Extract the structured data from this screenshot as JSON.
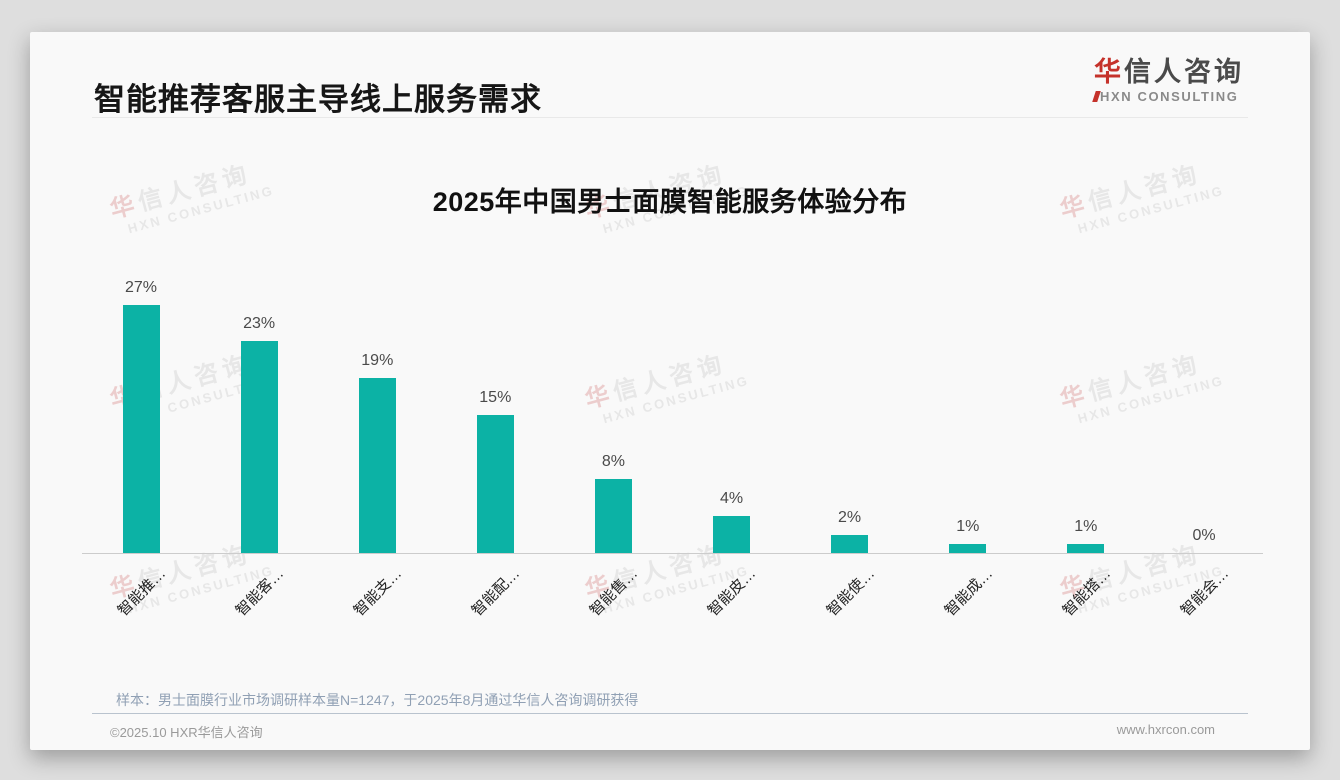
{
  "header": {
    "title": "智能推荐客服主导线上服务需求",
    "logo": {
      "cn_first": "华",
      "cn_rest": "信人咨询",
      "en": "HXN CONSULTING"
    }
  },
  "watermark": {
    "cn_first": "华",
    "cn_rest": "信人咨询",
    "en": "HXN CONSULTING"
  },
  "chart_data": {
    "type": "bar",
    "title": "2025年中国男士面膜智能服务体验分布",
    "categories": [
      "智能推…",
      "智能客…",
      "智能支…",
      "智能配…",
      "智能售…",
      "智能皮…",
      "智能使…",
      "智能成…",
      "智能搭…",
      "智能会…"
    ],
    "values": [
      27,
      23,
      19,
      15,
      8,
      4,
      2,
      1,
      1,
      0
    ],
    "value_suffix": "%",
    "bar_color": "#0cb2a5",
    "xlabel": "",
    "ylabel": "",
    "ylim": [
      0,
      30
    ],
    "grid": false,
    "legend": null,
    "value_labels_shown": true,
    "x_label_rotation": -45
  },
  "footnote": "样本：男士面膜行业市场调研样本量N=1247，于2025年8月通过华信人咨询调研获得",
  "footer": {
    "left": "©2025.10 HXR华信人咨询",
    "right": "www.hxrcon.com"
  }
}
